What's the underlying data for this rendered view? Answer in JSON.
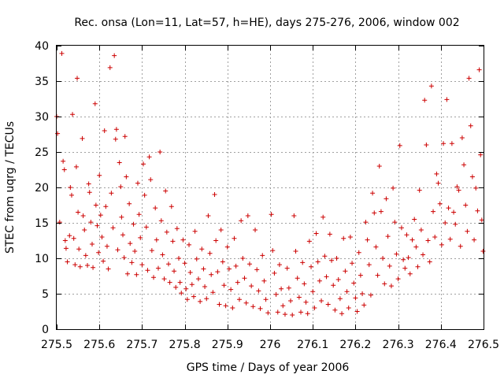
{
  "chart_data": {
    "type": "scatter",
    "title": "Rec. onsa (Lon=11, Lat=57, h=HE), days 275-276, 2006, window 002",
    "xlabel": "GPS time / Days of year 2006",
    "ylabel": "STEC from uqrg / TECUs",
    "xlim": [
      275.5,
      276.5
    ],
    "ylim": [
      0,
      40
    ],
    "xticks": [
      "275.5",
      "275.6",
      "275.7",
      "275.8",
      "275.9",
      "276",
      "276.1",
      "276.2",
      "276.3",
      "276.4",
      "276.5"
    ],
    "xtick_values": [
      275.5,
      275.6,
      275.7,
      275.8,
      275.9,
      276.0,
      276.1,
      276.2,
      276.3,
      276.4,
      276.5
    ],
    "yticks": [
      "0",
      "5",
      "10",
      "15",
      "20",
      "25",
      "30",
      "35",
      "40"
    ],
    "ytick_values": [
      0,
      5,
      10,
      15,
      20,
      25,
      30,
      35,
      40
    ],
    "grid": true,
    "marker": "plus",
    "color": "#cc0000",
    "points": [
      [
        275.5,
        30.0
      ],
      [
        275.502,
        27.6
      ],
      [
        275.507,
        15.1
      ],
      [
        275.512,
        38.9
      ],
      [
        275.515,
        23.7
      ],
      [
        275.518,
        22.5
      ],
      [
        275.52,
        12.5
      ],
      [
        275.522,
        11.4
      ],
      [
        275.525,
        9.5
      ],
      [
        275.53,
        13.2
      ],
      [
        275.532,
        20.0
      ],
      [
        275.535,
        18.9
      ],
      [
        275.537,
        30.3
      ],
      [
        275.54,
        12.8
      ],
      [
        275.543,
        9.1
      ],
      [
        275.546,
        22.9
      ],
      [
        275.548,
        35.4
      ],
      [
        275.55,
        16.5
      ],
      [
        275.552,
        11.3
      ],
      [
        275.555,
        8.8
      ],
      [
        275.56,
        26.9
      ],
      [
        275.562,
        16.0
      ],
      [
        275.565,
        14.0
      ],
      [
        275.568,
        10.4
      ],
      [
        275.572,
        9.0
      ],
      [
        275.575,
        20.5
      ],
      [
        275.577,
        19.3
      ],
      [
        275.58,
        15.1
      ],
      [
        275.583,
        12.0
      ],
      [
        275.585,
        8.7
      ],
      [
        275.59,
        31.8
      ],
      [
        275.592,
        17.5
      ],
      [
        275.595,
        14.6
      ],
      [
        275.598,
        10.8
      ],
      [
        275.6,
        21.7
      ],
      [
        275.603,
        16.1
      ],
      [
        275.606,
        13.0
      ],
      [
        275.609,
        9.6
      ],
      [
        275.612,
        28.0
      ],
      [
        275.615,
        17.3
      ],
      [
        275.618,
        11.7
      ],
      [
        275.621,
        8.5
      ],
      [
        275.625,
        36.9
      ],
      [
        275.628,
        19.2
      ],
      [
        275.632,
        14.3
      ],
      [
        275.635,
        38.6
      ],
      [
        275.638,
        26.8
      ],
      [
        275.64,
        28.2
      ],
      [
        275.643,
        11.2
      ],
      [
        275.647,
        23.5
      ],
      [
        275.65,
        20.1
      ],
      [
        275.652,
        15.8
      ],
      [
        275.655,
        13.3
      ],
      [
        275.658,
        10.1
      ],
      [
        275.66,
        27.2
      ],
      [
        275.663,
        21.5
      ],
      [
        275.666,
        7.8
      ],
      [
        275.67,
        17.7
      ],
      [
        275.672,
        12.1
      ],
      [
        275.676,
        9.4
      ],
      [
        275.68,
        14.8
      ],
      [
        275.683,
        11.0
      ],
      [
        275.687,
        7.7
      ],
      [
        275.69,
        20.6
      ],
      [
        275.693,
        16.2
      ],
      [
        275.696,
        12.9
      ],
      [
        275.7,
        9.1
      ],
      [
        275.703,
        23.3
      ],
      [
        275.706,
        18.9
      ],
      [
        275.71,
        14.4
      ],
      [
        275.713,
        8.3
      ],
      [
        275.717,
        24.3
      ],
      [
        275.72,
        21.1
      ],
      [
        275.723,
        11.1
      ],
      [
        275.727,
        7.3
      ],
      [
        275.731,
        17.1
      ],
      [
        275.734,
        12.6
      ],
      [
        275.738,
        8.6
      ],
      [
        275.742,
        25.0
      ],
      [
        275.745,
        15.3
      ],
      [
        275.748,
        10.5
      ],
      [
        275.752,
        7.1
      ],
      [
        275.755,
        19.5
      ],
      [
        275.758,
        13.7
      ],
      [
        275.762,
        9.2
      ],
      [
        275.765,
        6.6
      ],
      [
        275.769,
        17.3
      ],
      [
        275.772,
        12.4
      ],
      [
        275.775,
        8.2
      ],
      [
        275.779,
        5.9
      ],
      [
        275.782,
        14.2
      ],
      [
        275.786,
        10.0
      ],
      [
        275.789,
        6.6
      ],
      [
        275.792,
        5.1
      ],
      [
        275.796,
        12.6
      ],
      [
        275.8,
        9.3
      ],
      [
        275.803,
        5.7
      ],
      [
        275.806,
        4.2
      ],
      [
        275.81,
        11.9
      ],
      [
        275.813,
        8.0
      ],
      [
        275.817,
        6.3
      ],
      [
        275.821,
        4.6
      ],
      [
        275.824,
        13.8
      ],
      [
        275.828,
        9.9
      ],
      [
        275.832,
        7.1
      ],
      [
        275.836,
        3.9
      ],
      [
        275.84,
        11.3
      ],
      [
        275.844,
        8.5
      ],
      [
        275.847,
        6.0
      ],
      [
        275.851,
        4.3
      ],
      [
        275.855,
        16.0
      ],
      [
        275.859,
        10.7
      ],
      [
        275.862,
        7.7
      ],
      [
        275.866,
        5.2
      ],
      [
        275.87,
        19.0
      ],
      [
        275.873,
        12.5
      ],
      [
        275.877,
        8.1
      ],
      [
        275.881,
        3.5
      ],
      [
        275.885,
        14.0
      ],
      [
        275.889,
        9.5
      ],
      [
        275.892,
        6.2
      ],
      [
        275.896,
        3.3
      ],
      [
        275.9,
        11.6
      ],
      [
        275.904,
        8.5
      ],
      [
        275.908,
        5.6
      ],
      [
        275.912,
        3.0
      ],
      [
        275.916,
        12.8
      ],
      [
        275.92,
        8.9
      ],
      [
        275.924,
        6.6
      ],
      [
        275.928,
        4.2
      ],
      [
        275.932,
        15.3
      ],
      [
        275.936,
        10.0
      ],
      [
        275.94,
        7.2
      ],
      [
        275.944,
        3.7
      ],
      [
        275.948,
        16.0
      ],
      [
        275.952,
        9.2
      ],
      [
        275.956,
        6.1
      ],
      [
        275.96,
        3.2
      ],
      [
        275.965,
        14.0
      ],
      [
        275.969,
        8.4
      ],
      [
        275.973,
        5.4
      ],
      [
        275.977,
        2.9
      ],
      [
        275.982,
        10.4
      ],
      [
        275.986,
        6.8
      ],
      [
        275.99,
        4.2
      ],
      [
        275.995,
        2.3
      ],
      [
        276.003,
        16.2
      ],
      [
        276.006,
        11.1
      ],
      [
        276.01,
        7.9
      ],
      [
        276.014,
        4.9
      ],
      [
        276.018,
        2.4
      ],
      [
        276.022,
        9.1
      ],
      [
        276.026,
        5.7
      ],
      [
        276.03,
        3.3
      ],
      [
        276.035,
        2.1
      ],
      [
        276.04,
        8.6
      ],
      [
        276.044,
        5.8
      ],
      [
        276.048,
        4.0
      ],
      [
        276.052,
        2.0
      ],
      [
        276.056,
        16.0
      ],
      [
        276.06,
        11.0
      ],
      [
        276.064,
        7.2
      ],
      [
        276.068,
        4.5
      ],
      [
        276.072,
        2.4
      ],
      [
        276.076,
        9.4
      ],
      [
        276.08,
        6.4
      ],
      [
        276.084,
        3.8
      ],
      [
        276.088,
        2.2
      ],
      [
        276.092,
        12.4
      ],
      [
        276.096,
        8.8
      ],
      [
        276.1,
        5.3
      ],
      [
        276.104,
        3.0
      ],
      [
        276.108,
        13.5
      ],
      [
        276.112,
        9.5
      ],
      [
        276.116,
        6.8
      ],
      [
        276.12,
        4.0
      ],
      [
        276.124,
        15.8
      ],
      [
        276.128,
        10.3
      ],
      [
        276.132,
        7.4
      ],
      [
        276.136,
        3.5
      ],
      [
        276.14,
        13.4
      ],
      [
        276.144,
        9.7
      ],
      [
        276.148,
        6.2
      ],
      [
        276.152,
        2.7
      ],
      [
        276.156,
        10.0
      ],
      [
        276.16,
        7.0
      ],
      [
        276.164,
        4.3
      ],
      [
        276.168,
        2.2
      ],
      [
        276.172,
        12.8
      ],
      [
        276.176,
        8.2
      ],
      [
        276.18,
        5.3
      ],
      [
        276.184,
        3.0
      ],
      [
        276.188,
        13.0
      ],
      [
        276.192,
        9.3
      ],
      [
        276.196,
        6.5
      ],
      [
        276.2,
        4.4
      ],
      [
        276.204,
        2.5
      ],
      [
        276.208,
        10.8
      ],
      [
        276.212,
        7.6
      ],
      [
        276.216,
        5.0
      ],
      [
        276.22,
        3.4
      ],
      [
        276.224,
        15.1
      ],
      [
        276.228,
        12.6
      ],
      [
        276.232,
        9.1
      ],
      [
        276.236,
        4.8
      ],
      [
        276.24,
        19.2
      ],
      [
        276.244,
        16.4
      ],
      [
        276.248,
        11.6
      ],
      [
        276.252,
        7.6
      ],
      [
        276.256,
        23.0
      ],
      [
        276.26,
        16.6
      ],
      [
        276.264,
        10.0
      ],
      [
        276.268,
        6.4
      ],
      [
        276.272,
        18.4
      ],
      [
        276.276,
        13.1
      ],
      [
        276.28,
        8.9
      ],
      [
        276.284,
        6.1
      ],
      [
        276.288,
        19.9
      ],
      [
        276.292,
        15.1
      ],
      [
        276.296,
        10.6
      ],
      [
        276.3,
        7.1
      ],
      [
        276.304,
        25.9
      ],
      [
        276.308,
        14.3
      ],
      [
        276.312,
        9.8
      ],
      [
        276.316,
        8.6
      ],
      [
        276.32,
        13.3
      ],
      [
        276.324,
        10.1
      ],
      [
        276.328,
        7.8
      ],
      [
        276.333,
        12.6
      ],
      [
        276.338,
        15.5
      ],
      [
        276.342,
        11.6
      ],
      [
        276.346,
        8.8
      ],
      [
        276.35,
        19.6
      ],
      [
        276.354,
        14.0
      ],
      [
        276.358,
        10.5
      ],
      [
        276.362,
        32.3
      ],
      [
        276.366,
        26.0
      ],
      [
        276.37,
        12.5
      ],
      [
        276.374,
        9.5
      ],
      [
        276.378,
        34.3
      ],
      [
        276.382,
        16.6
      ],
      [
        276.386,
        13.0
      ],
      [
        276.39,
        21.9
      ],
      [
        276.394,
        20.6
      ],
      [
        276.398,
        17.7
      ],
      [
        276.402,
        11.9
      ],
      [
        276.406,
        26.2
      ],
      [
        276.41,
        15.0
      ],
      [
        276.414,
        32.4
      ],
      [
        276.418,
        17.1
      ],
      [
        276.422,
        12.7
      ],
      [
        276.426,
        26.2
      ],
      [
        276.43,
        16.5
      ],
      [
        276.434,
        14.8
      ],
      [
        276.438,
        20.1
      ],
      [
        276.442,
        19.6
      ],
      [
        276.446,
        11.7
      ],
      [
        276.45,
        27.0
      ],
      [
        276.454,
        23.2
      ],
      [
        276.458,
        17.5
      ],
      [
        276.462,
        13.8
      ],
      [
        276.466,
        35.4
      ],
      [
        276.47,
        28.7
      ],
      [
        276.474,
        21.5
      ],
      [
        276.478,
        12.6
      ],
      [
        276.482,
        19.9
      ],
      [
        276.486,
        16.7
      ],
      [
        276.49,
        36.6
      ],
      [
        276.493,
        24.6
      ],
      [
        276.496,
        15.4
      ],
      [
        276.499,
        11.0
      ]
    ]
  }
}
